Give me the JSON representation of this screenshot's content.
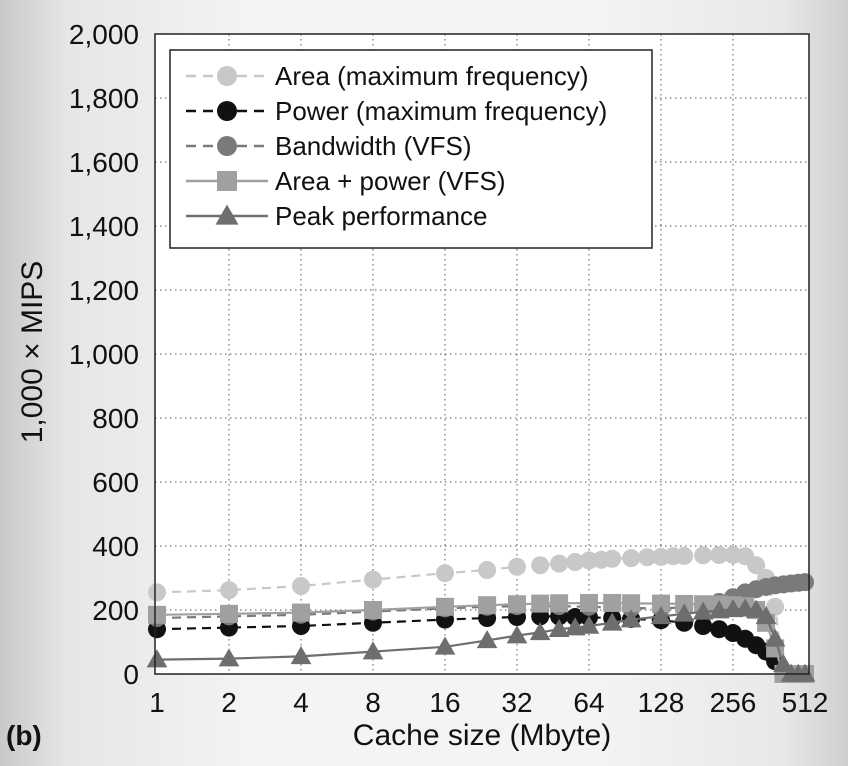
{
  "panel_label": "(b)",
  "chart_data": {
    "type": "line",
    "xlabel": "Cache size (Mbyte)",
    "ylabel": "1,000 × MIPS",
    "x_scale": "log2",
    "xlim": [
      1,
      512
    ],
    "ylim": [
      0,
      2000
    ],
    "x_ticks": [
      1,
      2,
      4,
      8,
      16,
      32,
      64,
      128,
      256,
      512
    ],
    "x_tick_labels": [
      "1",
      "2",
      "4",
      "8",
      "16",
      "32",
      "64",
      "128",
      "256",
      "512"
    ],
    "y_ticks": [
      0,
      200,
      400,
      600,
      800,
      1000,
      1200,
      1400,
      1600,
      1800,
      2000
    ],
    "y_tick_labels": [
      "0",
      "200",
      "400",
      "600",
      "800",
      "1,000",
      "1,200",
      "1,400",
      "1,600",
      "1,800",
      "2,000"
    ],
    "grid": true,
    "legend_position": "top-left",
    "series": [
      {
        "name": "Area (maximum frequency)",
        "color": "#c8c8c8",
        "dash": "dashed",
        "marker": "circle",
        "x": [
          1,
          2,
          4,
          8,
          16,
          24,
          32,
          40,
          48,
          56,
          64,
          72,
          80,
          96,
          112,
          128,
          144,
          160,
          192,
          224,
          256,
          288,
          320,
          352,
          384,
          416
        ],
        "y": [
          255,
          262,
          275,
          295,
          315,
          325,
          335,
          340,
          345,
          350,
          355,
          357,
          360,
          362,
          365,
          366,
          368,
          369,
          371,
          372,
          372,
          368,
          340,
          300,
          210,
          0
        ]
      },
      {
        "name": "Power (maximum frequency)",
        "color": "#111111",
        "dash": "dashed",
        "marker": "circle",
        "x": [
          1,
          2,
          4,
          8,
          16,
          24,
          32,
          40,
          48,
          56,
          64,
          80,
          96,
          128,
          160,
          192,
          224,
          256,
          288,
          320,
          352,
          384,
          416
        ],
        "y": [
          140,
          145,
          150,
          160,
          170,
          175,
          178,
          180,
          180,
          178,
          177,
          175,
          172,
          168,
          160,
          150,
          140,
          128,
          110,
          90,
          70,
          40,
          0
        ]
      },
      {
        "name": "Bandwidth (VFS)",
        "color": "#7a7a7a",
        "dash": "dashed",
        "marker": "circle",
        "x": [
          1,
          2,
          4,
          8,
          16,
          24,
          32,
          48,
          64,
          96,
          128,
          160,
          192,
          224,
          256,
          288,
          320,
          352,
          384,
          416,
          448,
          480,
          512
        ],
        "y": [
          175,
          180,
          185,
          195,
          205,
          210,
          212,
          212,
          210,
          206,
          205,
          208,
          215,
          225,
          240,
          255,
          265,
          272,
          277,
          280,
          283,
          285,
          287
        ]
      },
      {
        "name": "Area + power (VFS)",
        "color": "#a0a0a0",
        "dash": "solid",
        "marker": "square",
        "x": [
          1,
          2,
          4,
          8,
          16,
          24,
          32,
          40,
          48,
          64,
          80,
          96,
          128,
          160,
          192,
          224,
          256,
          288,
          320,
          352,
          384,
          416,
          448,
          480,
          512
        ],
        "y": [
          185,
          188,
          192,
          200,
          210,
          215,
          218,
          220,
          221,
          222,
          222,
          221,
          220,
          219,
          218,
          217,
          215,
          212,
          200,
          160,
          80,
          0,
          0,
          0,
          0
        ]
      },
      {
        "name": "Peak performance",
        "color": "#6e6e6e",
        "dash": "solid",
        "marker": "triangle",
        "x": [
          1,
          2,
          4,
          8,
          16,
          24,
          32,
          40,
          48,
          56,
          64,
          80,
          96,
          128,
          160,
          192,
          224,
          256,
          288,
          320,
          352,
          384,
          416,
          448,
          480,
          512
        ],
        "y": [
          45,
          48,
          55,
          70,
          85,
          105,
          120,
          130,
          140,
          145,
          150,
          160,
          170,
          180,
          188,
          194,
          198,
          202,
          204,
          200,
          180,
          110,
          30,
          0,
          0,
          0
        ]
      }
    ]
  }
}
